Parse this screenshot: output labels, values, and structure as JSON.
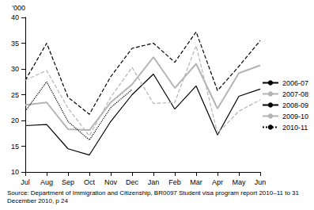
{
  "chart_data": {
    "type": "line",
    "y_label": "'000",
    "source": "Source: Department of Immigration and Citizenship, BR0097 Student visa program report 2010–11 to 31 December 2010, p 24",
    "categories": [
      "Jul",
      "Aug",
      "Sep",
      "Oct",
      "Nov",
      "Dec",
      "Jan",
      "Feb",
      "Mar",
      "Apr",
      "May",
      "Jun"
    ],
    "series": [
      {
        "name": "2006-07",
        "color": "#000000",
        "line_style": "solid",
        "values": [
          19,
          19.2,
          14.5,
          13.3,
          19.8,
          25,
          29,
          22.2,
          26.7,
          17.2,
          24.7,
          26.1
        ]
      },
      {
        "name": "2007-08",
        "color": "#b4b4b4",
        "line_style": "solid",
        "values": [
          23,
          23.5,
          18.3,
          18.1,
          23.5,
          27,
          32.3,
          26.3,
          31,
          22.3,
          29.2,
          30.7
        ]
      },
      {
        "name": "2008-09",
        "color": "#000000",
        "line_style": "dashed",
        "values": [
          27.8,
          35,
          24.5,
          21.2,
          28.5,
          34,
          35,
          31.3,
          37.2,
          25.8,
          30.5,
          35.5
        ]
      },
      {
        "name": "2009-10",
        "color": "#b4b4b4",
        "line_style": "dashed",
        "values": [
          27.8,
          29.7,
          22.4,
          17,
          24.5,
          30.3,
          23.3,
          23.5,
          34.5,
          17.5,
          21.8,
          24
        ]
      },
      {
        "name": "2010-11",
        "color": "#000000",
        "line_style": "dotted",
        "values": [
          21.8,
          27.5,
          19.8,
          16.2,
          22.5,
          26,
          null,
          null,
          null,
          null,
          null,
          null
        ]
      }
    ],
    "ylim": [
      10,
      40
    ],
    "yticks": [
      10,
      15,
      20,
      25,
      30,
      35,
      40
    ],
    "grid": false,
    "legend": "right"
  }
}
